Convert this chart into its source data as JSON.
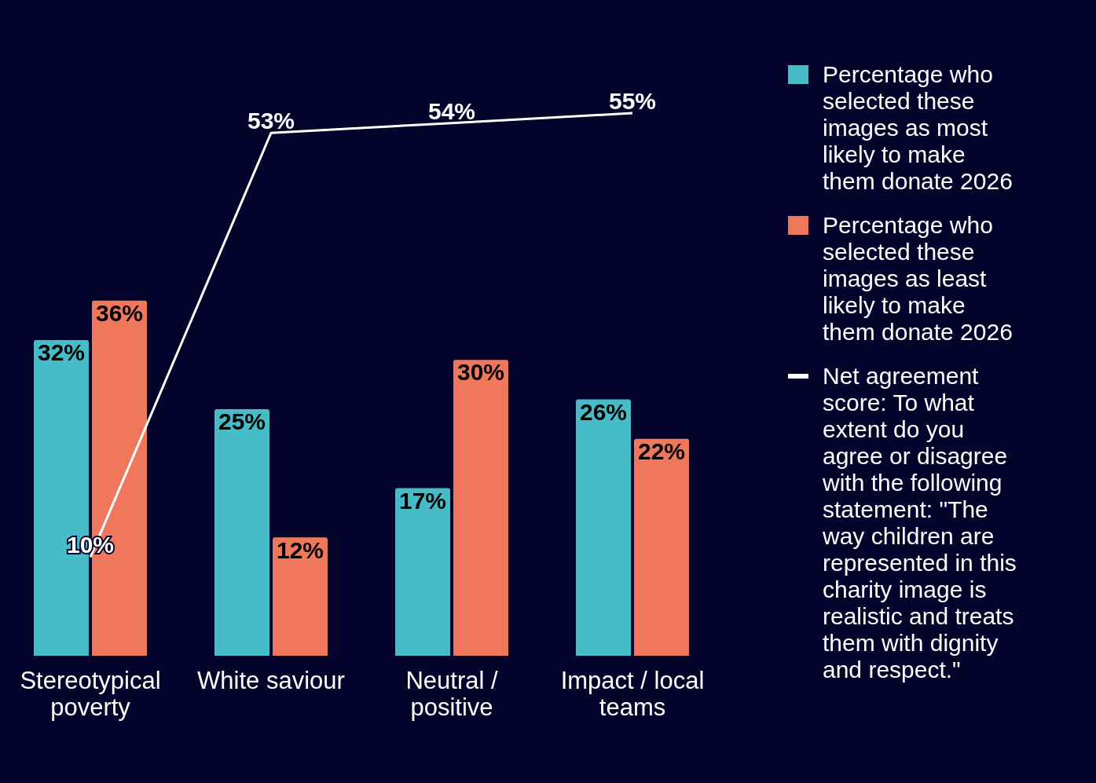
{
  "chart_data": {
    "type": "bar",
    "categories": [
      "Stereotypical poverty",
      "White saviour",
      "Neutral / positive",
      "Impact / local teams"
    ],
    "series": [
      {
        "name": "Percentage who selected these images as most likely to make them donate 2026",
        "color": "#45bcc8",
        "values": [
          32,
          25,
          17,
          26
        ],
        "value_labels": [
          "32%",
          "25%",
          "17%",
          "26%"
        ]
      },
      {
        "name": "Percentage who selected these images as least likely to make them donate 2026",
        "color": "#ee775c",
        "values": [
          36,
          12,
          30,
          22
        ],
        "value_labels": [
          "36%",
          "12%",
          "30%",
          "22%"
        ]
      },
      {
        "name": "Net agreement score: To what extent do you agree or disagree with the following statement: \"The way children are represented in this charity image is realistic and treats them with dignity and respect.\"",
        "color": "#ffffff",
        "type": "line",
        "values": [
          10,
          53,
          54,
          55
        ],
        "value_labels": [
          "10%",
          "53%",
          "54%",
          "55%"
        ]
      }
    ],
    "legend": "right",
    "grid": false
  }
}
